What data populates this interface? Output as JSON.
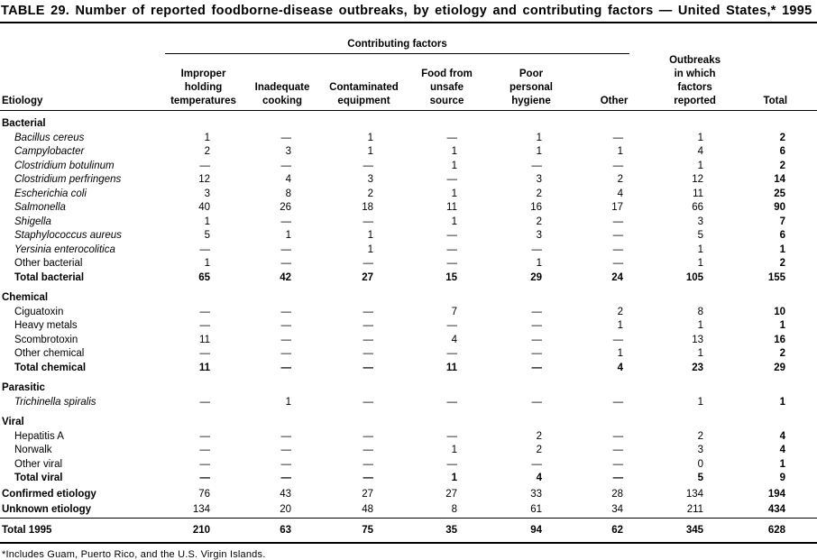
{
  "page": {
    "title": "TABLE 29. Number of reported foodborne-disease outbreaks, by etiology and contributing factors — United States,* 1995",
    "footnote": "*Includes Guam, Puerto Rico, and the U.S. Virgin Islands."
  },
  "table": {
    "spanner": "Contributing factors",
    "columns": {
      "etiology": "Etiology",
      "factor1": "Improper\nholding\ntemperatures",
      "factor2": "Inadequate\ncooking",
      "factor3": "Contaminated\nequipment",
      "factor4": "Food from\nunsafe\nsource",
      "factor5": "Poor\npersonal\nhygiene",
      "factor6": "Other",
      "outbreaks": "Outbreaks\nin which\nfactors\nreported",
      "total": "Total"
    },
    "rows": [
      {
        "type": "section",
        "label": "Bacterial"
      },
      {
        "type": "italic",
        "label": "Bacillus cereus",
        "values": [
          "1",
          "—",
          "1",
          "—",
          "1",
          "—",
          "1",
          "2"
        ]
      },
      {
        "type": "italic",
        "label": "Campylobacter",
        "values": [
          "2",
          "3",
          "1",
          "1",
          "1",
          "1",
          "4",
          "6"
        ]
      },
      {
        "type": "italic",
        "label": "Clostridium botulinum",
        "values": [
          "—",
          "—",
          "—",
          "1",
          "—",
          "—",
          "1",
          "2"
        ]
      },
      {
        "type": "italic",
        "label": "Clostridium perfringens",
        "values": [
          "12",
          "4",
          "3",
          "—",
          "3",
          "2",
          "12",
          "14"
        ]
      },
      {
        "type": "italic",
        "label": "Escherichia coli",
        "values": [
          "3",
          "8",
          "2",
          "1",
          "2",
          "4",
          "11",
          "25"
        ]
      },
      {
        "type": "italic",
        "label": "Salmonella",
        "values": [
          "40",
          "26",
          "18",
          "11",
          "16",
          "17",
          "66",
          "90"
        ]
      },
      {
        "type": "italic",
        "label": "Shigella",
        "values": [
          "1",
          "—",
          "—",
          "1",
          "2",
          "—",
          "3",
          "7"
        ]
      },
      {
        "type": "italic",
        "label": "Staphylococcus aureus",
        "values": [
          "5",
          "1",
          "1",
          "—",
          "3",
          "—",
          "5",
          "6"
        ]
      },
      {
        "type": "italic",
        "label": "Yersinia enterocolitica",
        "values": [
          "—",
          "—",
          "1",
          "—",
          "—",
          "—",
          "1",
          "1"
        ]
      },
      {
        "type": "plain",
        "label": "Other bacterial",
        "values": [
          "1",
          "—",
          "—",
          "—",
          "1",
          "—",
          "1",
          "2"
        ]
      },
      {
        "type": "subtotal",
        "label": "Total bacterial",
        "values": [
          "65",
          "42",
          "27",
          "15",
          "29",
          "24",
          "105",
          "155"
        ]
      },
      {
        "type": "section",
        "label": "Chemical"
      },
      {
        "type": "plain",
        "label": "Ciguatoxin",
        "values": [
          "—",
          "—",
          "—",
          "7",
          "—",
          "2",
          "8",
          "10"
        ]
      },
      {
        "type": "plain",
        "label": "Heavy metals",
        "values": [
          "—",
          "—",
          "—",
          "—",
          "—",
          "1",
          "1",
          "1"
        ]
      },
      {
        "type": "plain",
        "label": "Scombrotoxin",
        "values": [
          "11",
          "—",
          "—",
          "4",
          "—",
          "—",
          "13",
          "16"
        ]
      },
      {
        "type": "plain",
        "label": "Other chemical",
        "values": [
          "—",
          "—",
          "—",
          "—",
          "—",
          "1",
          "1",
          "2"
        ]
      },
      {
        "type": "subtotal",
        "label": "Total chemical",
        "values": [
          "11",
          "—",
          "—",
          "11",
          "—",
          "4",
          "23",
          "29"
        ]
      },
      {
        "type": "section",
        "label": "Parasitic"
      },
      {
        "type": "italic",
        "label": "Trichinella spiralis",
        "values": [
          "—",
          "1",
          "—",
          "—",
          "—",
          "—",
          "1",
          "1"
        ]
      },
      {
        "type": "section",
        "label": "Viral"
      },
      {
        "type": "plain",
        "label": "Hepatitis A",
        "values": [
          "—",
          "—",
          "—",
          "—",
          "2",
          "—",
          "2",
          "4"
        ]
      },
      {
        "type": "plain",
        "label": "Norwalk",
        "values": [
          "—",
          "—",
          "—",
          "1",
          "2",
          "—",
          "3",
          "4"
        ]
      },
      {
        "type": "plain",
        "label": "Other viral",
        "values": [
          "—",
          "—",
          "—",
          "—",
          "—",
          "—",
          "0",
          "1"
        ]
      },
      {
        "type": "subtotal",
        "label": "Total viral",
        "values": [
          "—",
          "—",
          "—",
          "1",
          "4",
          "—",
          "5",
          "9"
        ]
      },
      {
        "type": "flushbold",
        "label": "Confirmed etiology",
        "values": [
          "76",
          "43",
          "27",
          "27",
          "33",
          "28",
          "134",
          "194"
        ]
      },
      {
        "type": "flushbold",
        "label": "Unknown etiology",
        "values": [
          "134",
          "20",
          "48",
          "8",
          "61",
          "34",
          "211",
          "434"
        ]
      },
      {
        "type": "grand",
        "label": "Total 1995",
        "values": [
          "210",
          "63",
          "75",
          "35",
          "94",
          "62",
          "345",
          "628"
        ]
      }
    ]
  }
}
